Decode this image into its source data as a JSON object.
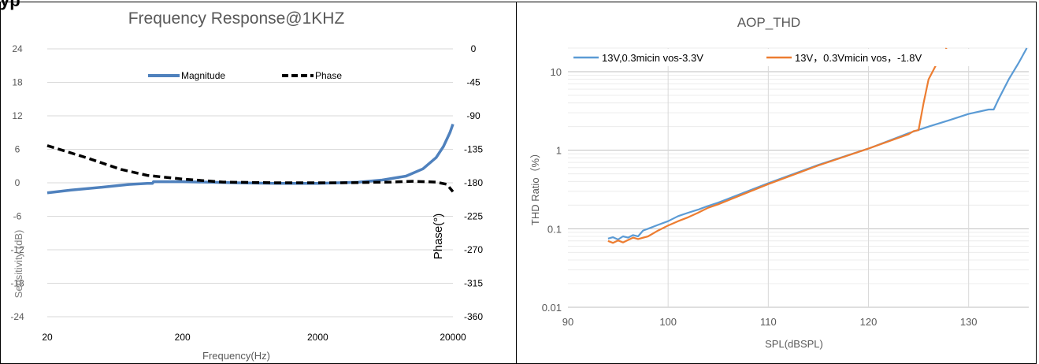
{
  "header": {
    "text": "yp"
  },
  "chart_data": [
    {
      "type": "line",
      "title": "Frequency  Response@1KHZ",
      "xlabel": "Frequency(Hz)",
      "ylabel": "Sensitivity (dB)",
      "y2label": "Phase(°)",
      "xscale": "log",
      "xlim": [
        20,
        20000
      ],
      "ylim": [
        -24,
        24
      ],
      "y2lim": [
        -360,
        0
      ],
      "x_ticks": [
        "20",
        "200",
        "2000",
        "20000"
      ],
      "y_ticks": [
        "24",
        "18",
        "12",
        "6",
        "0",
        "-6",
        "-12",
        "-18",
        "-24"
      ],
      "y2_ticks": [
        "0",
        "-45",
        "-90",
        "-135",
        "-180",
        "-225",
        "-270",
        "-315",
        "-360"
      ],
      "grid": "horizontal",
      "legend": "top-center",
      "colors": {
        "magnitude": "#4f81bd",
        "phase": "#000000"
      },
      "series": [
        {
          "name": "Magnitude",
          "axis": "left",
          "style": "solid",
          "points": [
            [
              20,
              -1.8
            ],
            [
              30,
              -1.3
            ],
            [
              50,
              -0.8
            ],
            [
              80,
              -0.3
            ],
            [
              110,
              -0.1
            ],
            [
              120,
              -0.1
            ],
            [
              122,
              0.2
            ],
            [
              200,
              0.2
            ],
            [
              500,
              0.0
            ],
            [
              1000,
              -0.1
            ],
            [
              2000,
              -0.1
            ],
            [
              4000,
              0.1
            ],
            [
              6000,
              0.5
            ],
            [
              9000,
              1.2
            ],
            [
              12000,
              2.5
            ],
            [
              15000,
              4.5
            ],
            [
              17000,
              6.5
            ],
            [
              19000,
              9.0
            ],
            [
              20000,
              10.5
            ]
          ]
        },
        {
          "name": "Phase",
          "axis": "right",
          "style": "dashed",
          "points": [
            [
              20,
              -130
            ],
            [
              40,
              -147
            ],
            [
              70,
              -162
            ],
            [
              110,
              -170
            ],
            [
              200,
              -175
            ],
            [
              400,
              -179
            ],
            [
              1000,
              -180
            ],
            [
              3000,
              -180
            ],
            [
              7000,
              -179
            ],
            [
              10000,
              -178
            ],
            [
              15000,
              -179
            ],
            [
              18000,
              -182
            ],
            [
              20000,
              -192
            ]
          ]
        }
      ]
    },
    {
      "type": "line",
      "title": "AOP_THD",
      "xlabel": "SPL(dBSPL)",
      "ylabel": "THD Ratio（%）",
      "yscale": "log",
      "xlim": [
        90,
        136
      ],
      "ylim": [
        0.01,
        20
      ],
      "x_ticks": [
        "90",
        "100",
        "110",
        "120",
        "130"
      ],
      "y_ticks": [
        "10",
        "1",
        "0.1",
        "0.01"
      ],
      "grid": "both",
      "legend": "top",
      "colors": {
        "series1": "#5b9bd5",
        "series2": "#ed7d31"
      },
      "series": [
        {
          "name": "13V,0.3micin vos-3.3V",
          "points": [
            [
              94,
              0.075
            ],
            [
              94.5,
              0.078
            ],
            [
              95,
              0.073
            ],
            [
              95.5,
              0.08
            ],
            [
              96,
              0.077
            ],
            [
              96.5,
              0.083
            ],
            [
              97,
              0.08
            ],
            [
              97.5,
              0.095
            ],
            [
              98,
              0.1
            ],
            [
              99,
              0.112
            ],
            [
              100,
              0.125
            ],
            [
              101,
              0.145
            ],
            [
              102,
              0.16
            ],
            [
              103,
              0.175
            ],
            [
              104,
              0.195
            ],
            [
              105,
              0.215
            ],
            [
              110,
              0.38
            ],
            [
              115,
              0.65
            ],
            [
              120,
              1.05
            ],
            [
              124,
              1.65
            ],
            [
              126,
              2.0
            ],
            [
              128,
              2.4
            ],
            [
              130,
              2.9
            ],
            [
              132,
              3.3
            ],
            [
              132.5,
              3.3
            ],
            [
              133,
              4.5
            ],
            [
              134,
              8.0
            ],
            [
              135,
              13
            ],
            [
              135.8,
              20
            ]
          ]
        },
        {
          "name": "13V，0.3Vmicin vos，-1.8V",
          "points": [
            [
              94,
              0.07
            ],
            [
              94.5,
              0.066
            ],
            [
              95,
              0.071
            ],
            [
              95.5,
              0.067
            ],
            [
              96,
              0.072
            ],
            [
              96.5,
              0.077
            ],
            [
              97,
              0.074
            ],
            [
              98,
              0.08
            ],
            [
              99,
              0.095
            ],
            [
              100,
              0.11
            ],
            [
              101,
              0.125
            ],
            [
              102,
              0.14
            ],
            [
              103,
              0.16
            ],
            [
              104,
              0.185
            ],
            [
              105,
              0.205
            ],
            [
              110,
              0.37
            ],
            [
              115,
              0.64
            ],
            [
              120,
              1.05
            ],
            [
              124,
              1.6
            ],
            [
              124.5,
              1.75
            ],
            [
              125,
              1.8
            ],
            [
              125.5,
              4.0
            ],
            [
              126,
              8.0
            ],
            [
              127,
              14
            ],
            [
              127.8,
              20
            ]
          ]
        }
      ]
    }
  ]
}
